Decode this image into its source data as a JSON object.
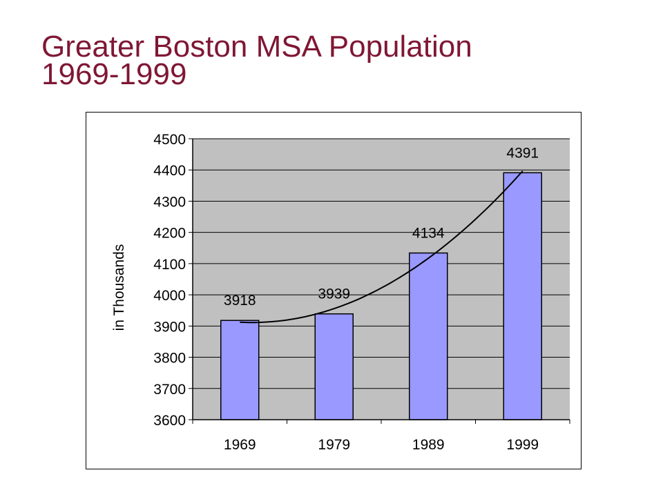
{
  "title": {
    "line1": "Greater Boston MSA Population",
    "line2": "1969-1999"
  },
  "colors": {
    "title": "#7f1734",
    "plot_area": "#c0c0c0",
    "bar_fill": "#9999ff",
    "bar_stroke": "#000000",
    "trendline": "#000000"
  },
  "chart_data": {
    "type": "bar",
    "categories": [
      "1969",
      "1979",
      "1989",
      "1999"
    ],
    "values": [
      3918,
      3939,
      4134,
      4391
    ],
    "data_labels": [
      "3918",
      "3939",
      "4134",
      "4391"
    ],
    "ylabel": "in Thousands",
    "xlabel": "",
    "ylim": [
      3600,
      4500
    ],
    "yticks": [
      3600,
      3700,
      3800,
      3900,
      4000,
      4100,
      4200,
      4300,
      4400,
      4500
    ],
    "grid": true,
    "trendline": "polynomial",
    "legend": "none"
  }
}
